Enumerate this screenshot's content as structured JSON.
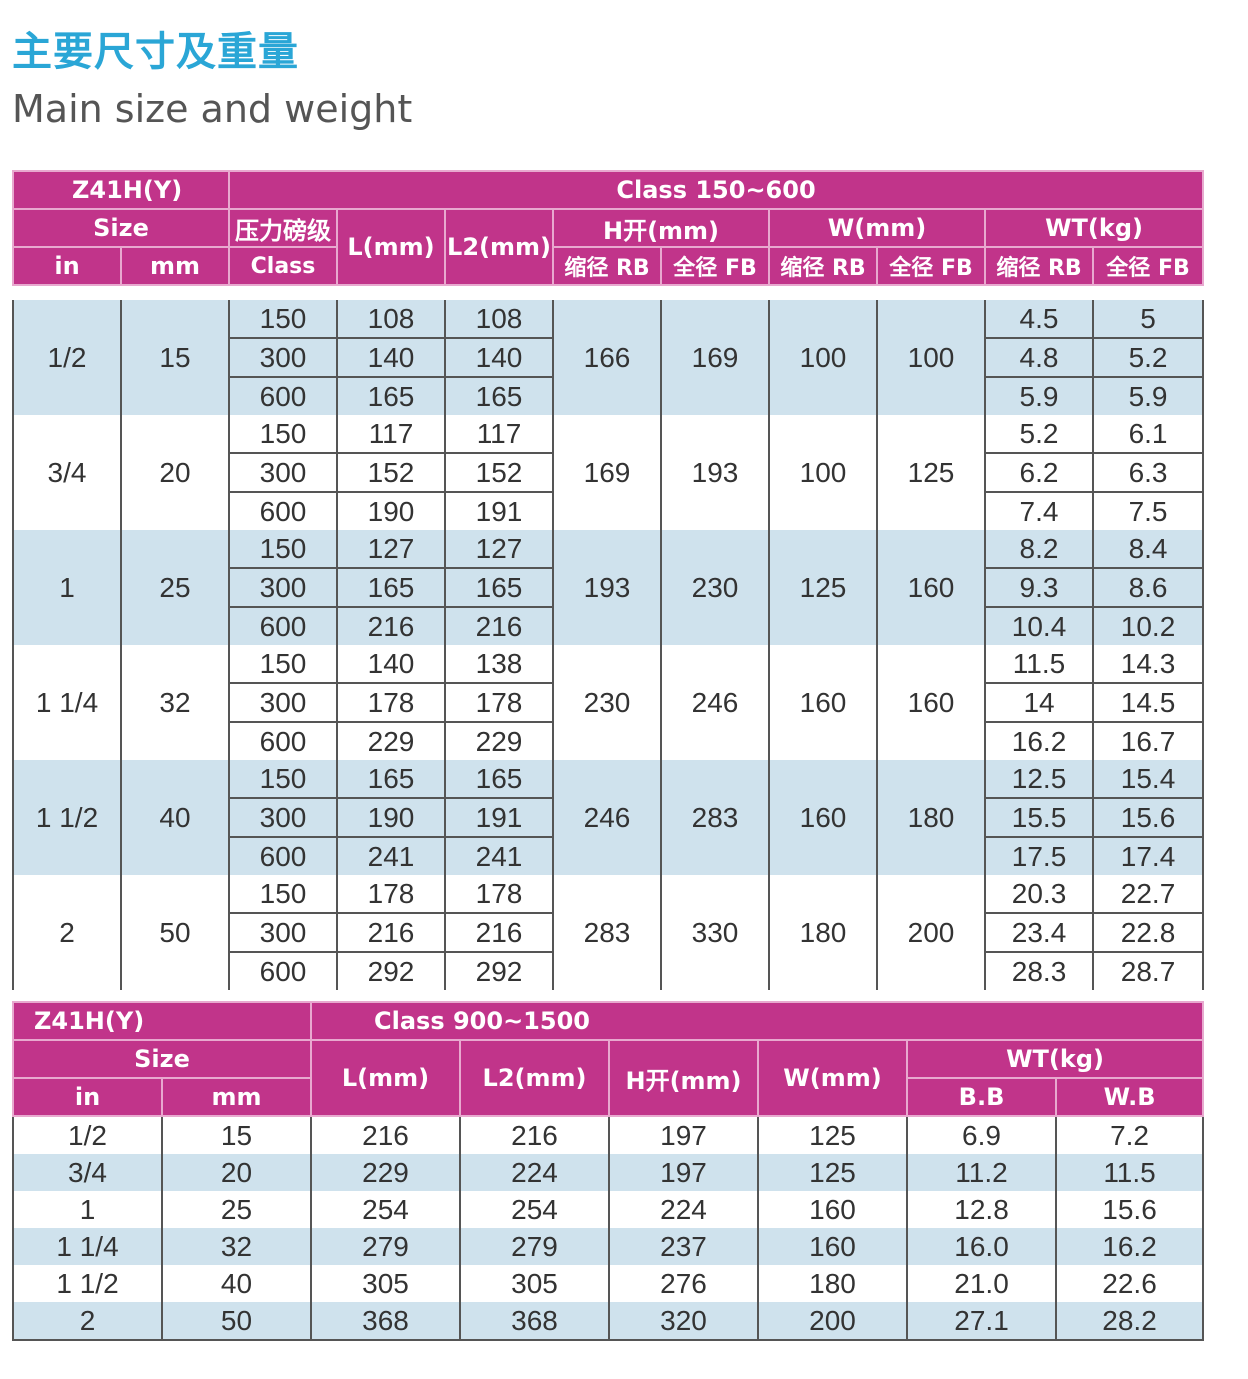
{
  "title_cn": "主要尺寸及重量",
  "title_en": "Main size and weight",
  "table1": {
    "model": "Z41H(Y)",
    "class_range": "Class 150~600",
    "headers": {
      "size": "Size",
      "in": "in",
      "mm": "mm",
      "pressure_cn": "压力磅级",
      "class": "Class",
      "l": "L(mm)",
      "l2": "L2(mm)",
      "h": "H开(mm)",
      "w": "W(mm)",
      "wt": "WT(kg)",
      "rb": "缩径 RB",
      "fb": "全径 FB"
    },
    "groups": [
      {
        "in": "1/2",
        "mm": "15",
        "h_rb": "166",
        "h_fb": "169",
        "w_rb": "100",
        "w_fb": "100",
        "rows": [
          {
            "cls": "150",
            "l": "108",
            "l2": "108",
            "wt_rb": "4.5",
            "wt_fb": "5"
          },
          {
            "cls": "300",
            "l": "140",
            "l2": "140",
            "wt_rb": "4.8",
            "wt_fb": "5.2"
          },
          {
            "cls": "600",
            "l": "165",
            "l2": "165",
            "wt_rb": "5.9",
            "wt_fb": "5.9"
          }
        ]
      },
      {
        "in": "3/4",
        "mm": "20",
        "h_rb": "169",
        "h_fb": "193",
        "w_rb": "100",
        "w_fb": "125",
        "rows": [
          {
            "cls": "150",
            "l": "117",
            "l2": "117",
            "wt_rb": "5.2",
            "wt_fb": "6.1"
          },
          {
            "cls": "300",
            "l": "152",
            "l2": "152",
            "wt_rb": "6.2",
            "wt_fb": "6.3"
          },
          {
            "cls": "600",
            "l": "190",
            "l2": "191",
            "wt_rb": "7.4",
            "wt_fb": "7.5"
          }
        ]
      },
      {
        "in": "1",
        "mm": "25",
        "h_rb": "193",
        "h_fb": "230",
        "w_rb": "125",
        "w_fb": "160",
        "rows": [
          {
            "cls": "150",
            "l": "127",
            "l2": "127",
            "wt_rb": "8.2",
            "wt_fb": "8.4"
          },
          {
            "cls": "300",
            "l": "165",
            "l2": "165",
            "wt_rb": "9.3",
            "wt_fb": "8.6"
          },
          {
            "cls": "600",
            "l": "216",
            "l2": "216",
            "wt_rb": "10.4",
            "wt_fb": "10.2"
          }
        ]
      },
      {
        "in": "1 1/4",
        "mm": "32",
        "h_rb": "230",
        "h_fb": "246",
        "w_rb": "160",
        "w_fb": "160",
        "rows": [
          {
            "cls": "150",
            "l": "140",
            "l2": "138",
            "wt_rb": "11.5",
            "wt_fb": "14.3"
          },
          {
            "cls": "300",
            "l": "178",
            "l2": "178",
            "wt_rb": "14",
            "wt_fb": "14.5"
          },
          {
            "cls": "600",
            "l": "229",
            "l2": "229",
            "wt_rb": "16.2",
            "wt_fb": "16.7"
          }
        ]
      },
      {
        "in": "1 1/2",
        "mm": "40",
        "h_rb": "246",
        "h_fb": "283",
        "w_rb": "160",
        "w_fb": "180",
        "rows": [
          {
            "cls": "150",
            "l": "165",
            "l2": "165",
            "wt_rb": "12.5",
            "wt_fb": "15.4"
          },
          {
            "cls": "300",
            "l": "190",
            "l2": "191",
            "wt_rb": "15.5",
            "wt_fb": "15.6"
          },
          {
            "cls": "600",
            "l": "241",
            "l2": "241",
            "wt_rb": "17.5",
            "wt_fb": "17.4"
          }
        ]
      },
      {
        "in": "2",
        "mm": "50",
        "h_rb": "283",
        "h_fb": "330",
        "w_rb": "180",
        "w_fb": "200",
        "rows": [
          {
            "cls": "150",
            "l": "178",
            "l2": "178",
            "wt_rb": "20.3",
            "wt_fb": "22.7"
          },
          {
            "cls": "300",
            "l": "216",
            "l2": "216",
            "wt_rb": "23.4",
            "wt_fb": "22.8"
          },
          {
            "cls": "600",
            "l": "292",
            "l2": "292",
            "wt_rb": "28.3",
            "wt_fb": "28.7"
          }
        ]
      }
    ]
  },
  "table2": {
    "model": "Z41H(Y)",
    "class_range": "Class 900~1500",
    "headers": {
      "size": "Size",
      "in": "in",
      "mm": "mm",
      "l": "L(mm)",
      "l2": "L2(mm)",
      "h": "H开(mm)",
      "w": "W(mm)",
      "wt": "WT(kg)",
      "bb": "B.B",
      "wb": "W.B"
    },
    "rows": [
      [
        "1/2",
        "15",
        "216",
        "216",
        "197",
        "125",
        "6.9",
        "7.2"
      ],
      [
        "3/4",
        "20",
        "229",
        "224",
        "197",
        "125",
        "11.2",
        "11.5"
      ],
      [
        "1",
        "25",
        "254",
        "254",
        "224",
        "160",
        "12.8",
        "15.6"
      ],
      [
        "1 1/4",
        "32",
        "279",
        "279",
        "237",
        "160",
        "16.0",
        "16.2"
      ],
      [
        "1 1/2",
        "40",
        "305",
        "305",
        "276",
        "180",
        "21.0",
        "22.6"
      ],
      [
        "2",
        "50",
        "368",
        "368",
        "320",
        "200",
        "27.1",
        "28.2"
      ]
    ]
  }
}
